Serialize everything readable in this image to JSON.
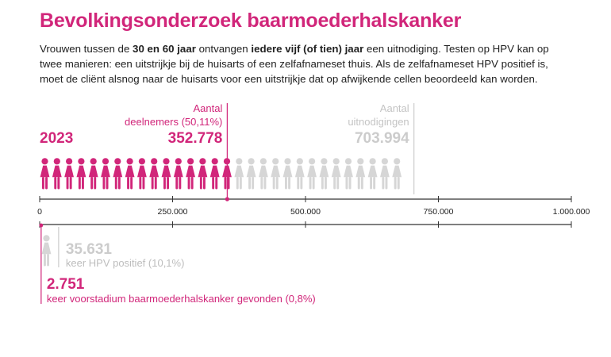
{
  "title": "Bevolkingsonderzoek baarmoederhalskanker",
  "intro": {
    "p1": "Vrouwen tussen de ",
    "b1": "30 en 60 jaar",
    "p2": " ontvangen ",
    "b2": "iedere vijf (of tien) jaar",
    "p3": " een uitnodiging. Testen op HPV kan op twee manieren: een uitstrijkje bij de huisarts of een zelfafnameset thuis. Als de zelfafnameset HPV positief is, moet de cliënt alsnog naar de huisarts voor een uitstrijkje dat op afwijkende cellen beoordeeld kan worden."
  },
  "colors": {
    "accent": "#d1267a",
    "muted": "#d6d6d6",
    "axis": "#333333",
    "text": "#222222"
  },
  "icons": {
    "person": "woman-figure-icon"
  },
  "chart_data": {
    "type": "bar",
    "year": "2023",
    "xlim": [
      0,
      1000000
    ],
    "ticks": [
      0,
      250000,
      500000,
      750000,
      1000000
    ],
    "tick_labels": [
      "0",
      "250.000",
      "500.000",
      "750.000",
      "1.000.000"
    ],
    "series": [
      {
        "key": "deelnemers",
        "label_line1": "Aantal",
        "label_line2": "deelnemers (50,11%)",
        "value": 352778,
        "value_label": "352.778",
        "color": "#d1267a"
      },
      {
        "key": "uitnodigingen",
        "label_line1": "Aantal",
        "label_line2": "uitnodigingen",
        "value": 703994,
        "value_label": "703.994",
        "color": "#d6d6d6"
      }
    ],
    "subseries": [
      {
        "key": "hpv",
        "value": 35631,
        "value_label": "35.631",
        "description": "keer HPV positief (10,1%)",
        "color": "#d6d6d6"
      },
      {
        "key": "voorstadium",
        "value": 2751,
        "value_label": "2.751",
        "description": "keer voorstadium baarmoederhalskanker gevonden (0,8%)",
        "color": "#d1267a"
      }
    ]
  }
}
